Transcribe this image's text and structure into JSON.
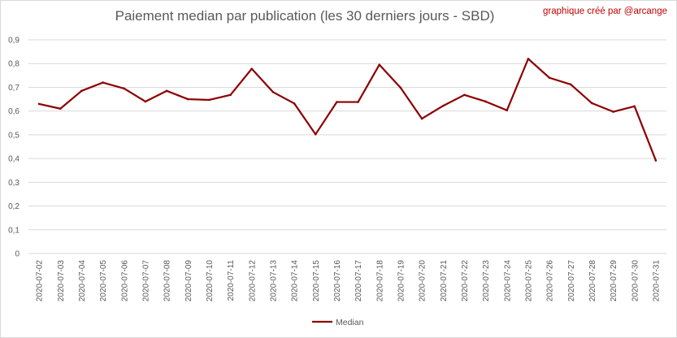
{
  "title": "Paiement median par publication (les 30 derniers jours - SBD)",
  "credit": "graphique créé par @arcange",
  "colors": {
    "line": "#8b0000",
    "grid": "#d9d9d9",
    "text": "#595959",
    "credit": "#c00000"
  },
  "chart_data": {
    "type": "line",
    "title": "Paiement median par publication (les 30 derniers jours - SBD)",
    "xlabel": "",
    "ylabel": "",
    "ylim": [
      0,
      0.9
    ],
    "yticks": [
      "0",
      "0,1",
      "0,2",
      "0,3",
      "0,4",
      "0,5",
      "0,6",
      "0,7",
      "0,8",
      "0,9"
    ],
    "grid": true,
    "legend": "bottom",
    "categories": [
      "2020-07-02",
      "2020-07-03",
      "2020-07-04",
      "2020-07-05",
      "2020-07-06",
      "2020-07-07",
      "2020-07-08",
      "2020-07-09",
      "2020-07-10",
      "2020-07-11",
      "2020-07-12",
      "2020-07-13",
      "2020-07-14",
      "2020-07-15",
      "2020-07-16",
      "2020-07-17",
      "2020-07-18",
      "2020-07-19",
      "2020-07-20",
      "2020-07-21",
      "2020-07-22",
      "2020-07-23",
      "2020-07-24",
      "2020-07-25",
      "2020-07-26",
      "2020-07-27",
      "2020-07-28",
      "2020-07-29",
      "2020-07-30",
      "2020-07-31"
    ],
    "series": [
      {
        "name": "Median",
        "values": [
          0.63,
          0.61,
          0.685,
          0.72,
          0.695,
          0.64,
          0.685,
          0.65,
          0.647,
          0.668,
          0.778,
          0.68,
          0.632,
          0.502,
          0.638,
          0.638,
          0.795,
          0.698,
          0.568,
          0.622,
          0.668,
          0.64,
          0.603,
          0.82,
          0.74,
          0.712,
          0.633,
          0.597,
          0.62,
          0.392
        ]
      }
    ]
  }
}
